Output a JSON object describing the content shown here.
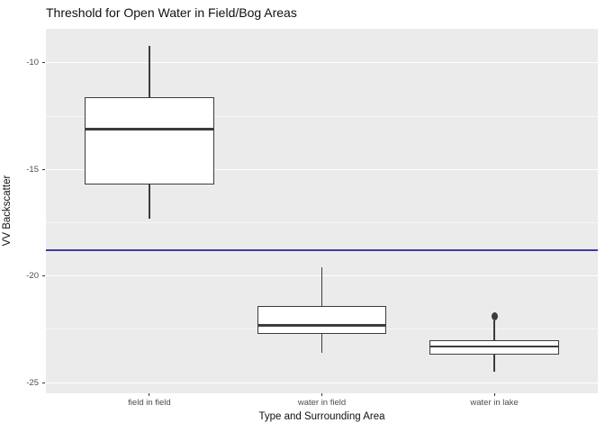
{
  "title": "Threshold for Open Water in Field/Bog Areas",
  "axes": {
    "x_label": "Type and Surrounding Area",
    "y_label": "VV Backscatter"
  },
  "colors": {
    "panel_bg": "#EBEBEB",
    "grid_major": "#FFFFFF",
    "grid_minor": "rgba(255,255,255,0.55)",
    "box_stroke": "#3C3C3C",
    "box_fill": "#FFFFFF",
    "threshold_line": "#3D3D9E",
    "tick_text": "#4D4D4D",
    "title_text": "#111111"
  },
  "chart_data": {
    "type": "boxplot",
    "title": "Threshold for Open Water in Field/Bog Areas",
    "xlabel": "Type and Surrounding Area",
    "ylabel": "VV Backscatter",
    "categories": [
      "field in field",
      "water in field",
      "water in lake"
    ],
    "series": [
      {
        "name": "field in field",
        "whisker_low": -17.3,
        "q1": -15.7,
        "median": -13.1,
        "q3": -11.6,
        "whisker_high": -9.2,
        "outliers": []
      },
      {
        "name": "water in field",
        "whisker_low": -23.6,
        "q1": -22.7,
        "median": -22.3,
        "q3": -21.4,
        "whisker_high": -19.6,
        "outliers": []
      },
      {
        "name": "water in lake",
        "whisker_low": -24.5,
        "q1": -23.7,
        "median": -23.3,
        "q3": -23.0,
        "whisker_high": -22.1,
        "outliers": [
          -21.9
        ]
      }
    ],
    "hline": {
      "value": -18.8,
      "color": "#3D3D9E"
    },
    "ylim": [
      -25.5,
      -8.4
    ],
    "y_major_ticks": [
      -10,
      -15,
      -20,
      -25
    ],
    "y_major_tick_labels": [
      "-10",
      "-15",
      "-20",
      "-25"
    ],
    "y_minor_ticks": [
      -12.5,
      -17.5,
      -22.5
    ],
    "grid": true,
    "legend": "none",
    "box_width_fraction": 0.75,
    "x_expand": 0.6
  }
}
